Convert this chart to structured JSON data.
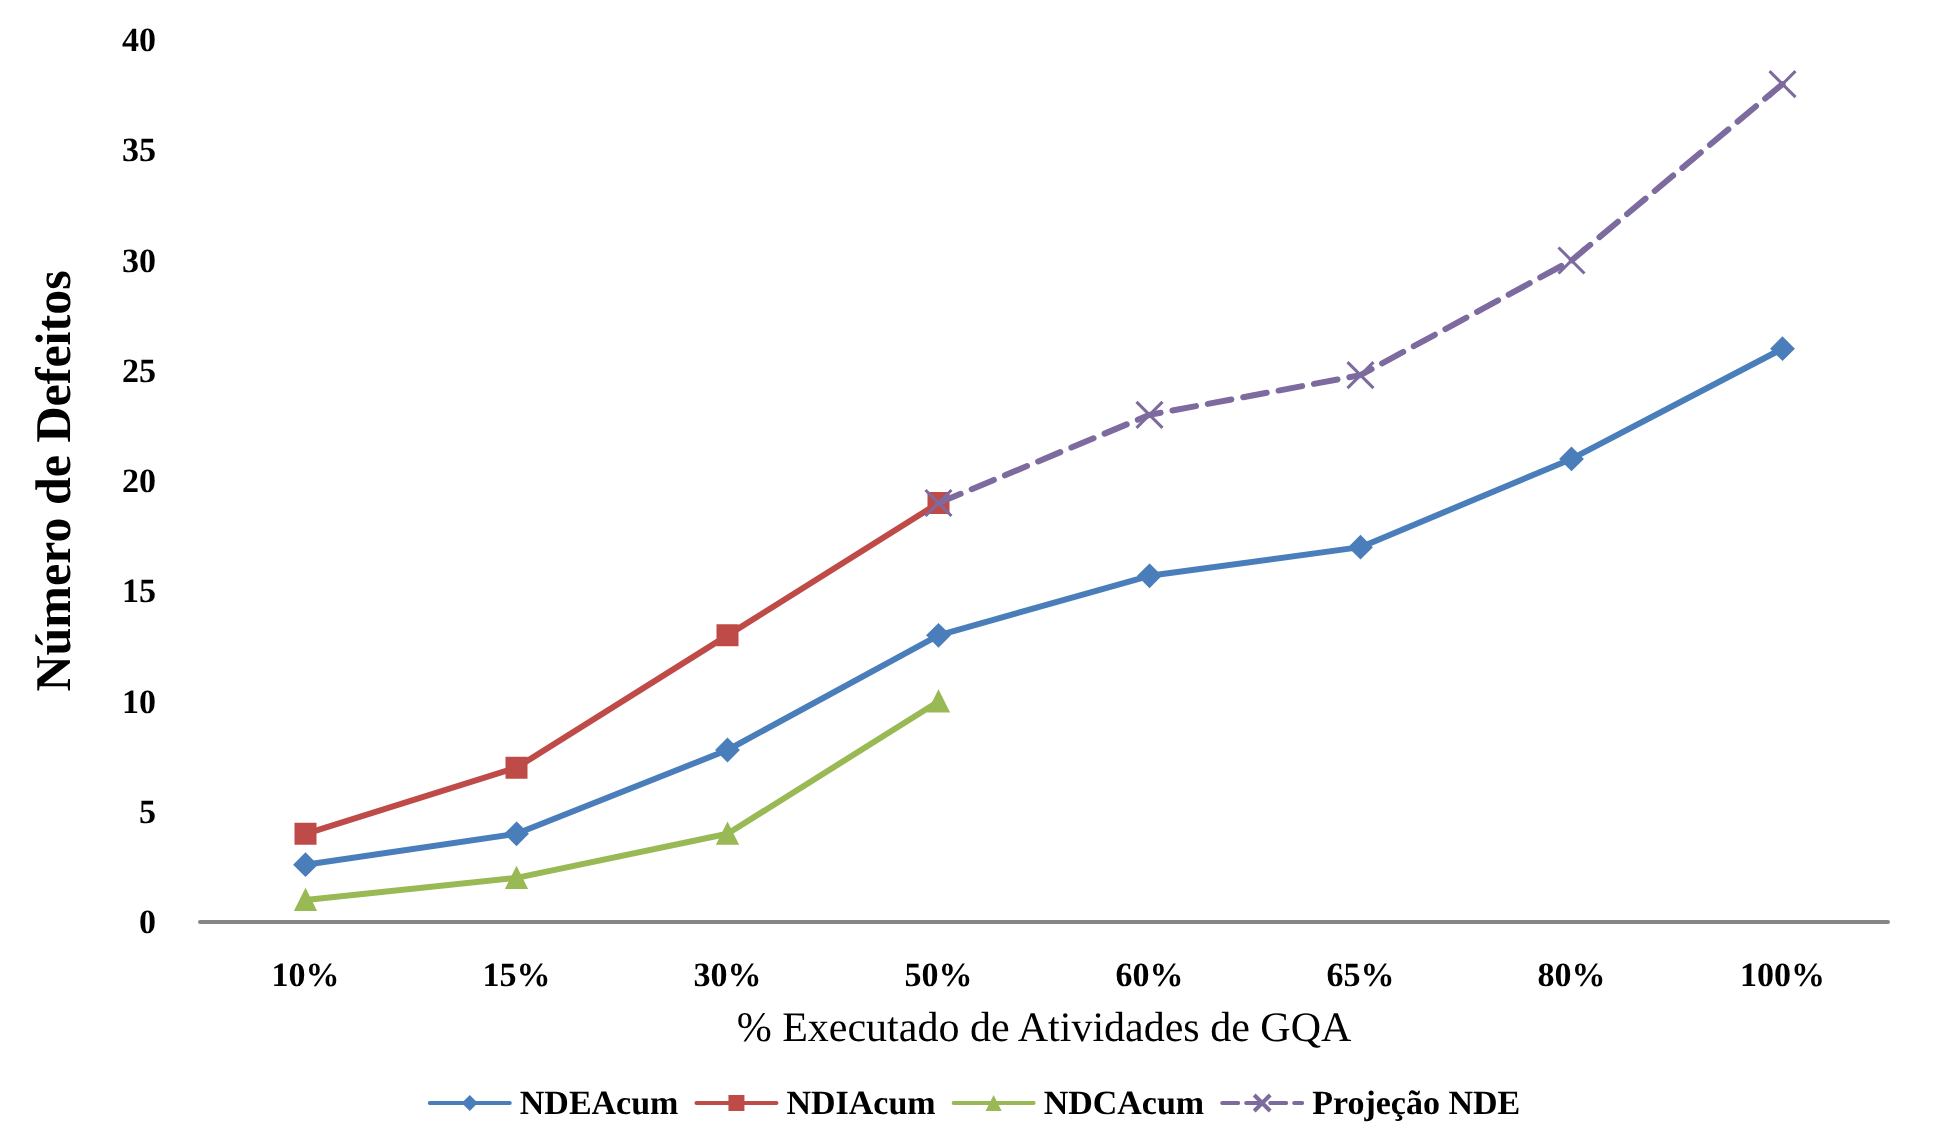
{
  "chart_data": {
    "type": "line",
    "xlabel": "% Executado de Atividades de GQA",
    "ylabel": "Número de Defeitos",
    "categories": [
      "10%",
      "15%",
      "30%",
      "50%",
      "60%",
      "65%",
      "80%",
      "100%"
    ],
    "ylim": [
      0,
      40
    ],
    "yticks": [
      0,
      5,
      10,
      15,
      20,
      25,
      30,
      35,
      40
    ],
    "grid": false,
    "legend": "bottom",
    "series": [
      {
        "name": "NDEAcum",
        "color": "#4a7ebb",
        "marker": "diamond",
        "line_style": "solid",
        "values": [
          2.6,
          4,
          7.8,
          13,
          15.7,
          17,
          21,
          26
        ]
      },
      {
        "name": "NDIAcum",
        "color": "#be4b48",
        "marker": "square",
        "line_style": "solid",
        "values": [
          4,
          7,
          13,
          19,
          null,
          null,
          null,
          null
        ]
      },
      {
        "name": "NDCAcum",
        "color": "#98b954",
        "marker": "triangle",
        "line_style": "solid",
        "values": [
          1,
          2,
          4,
          10,
          null,
          null,
          null,
          null
        ]
      },
      {
        "name": "Projeção NDE",
        "color": "#7d6a9e",
        "marker": "cross",
        "line_style": "dashed",
        "values": [
          null,
          null,
          null,
          19,
          23,
          24.8,
          30,
          38
        ]
      }
    ]
  }
}
